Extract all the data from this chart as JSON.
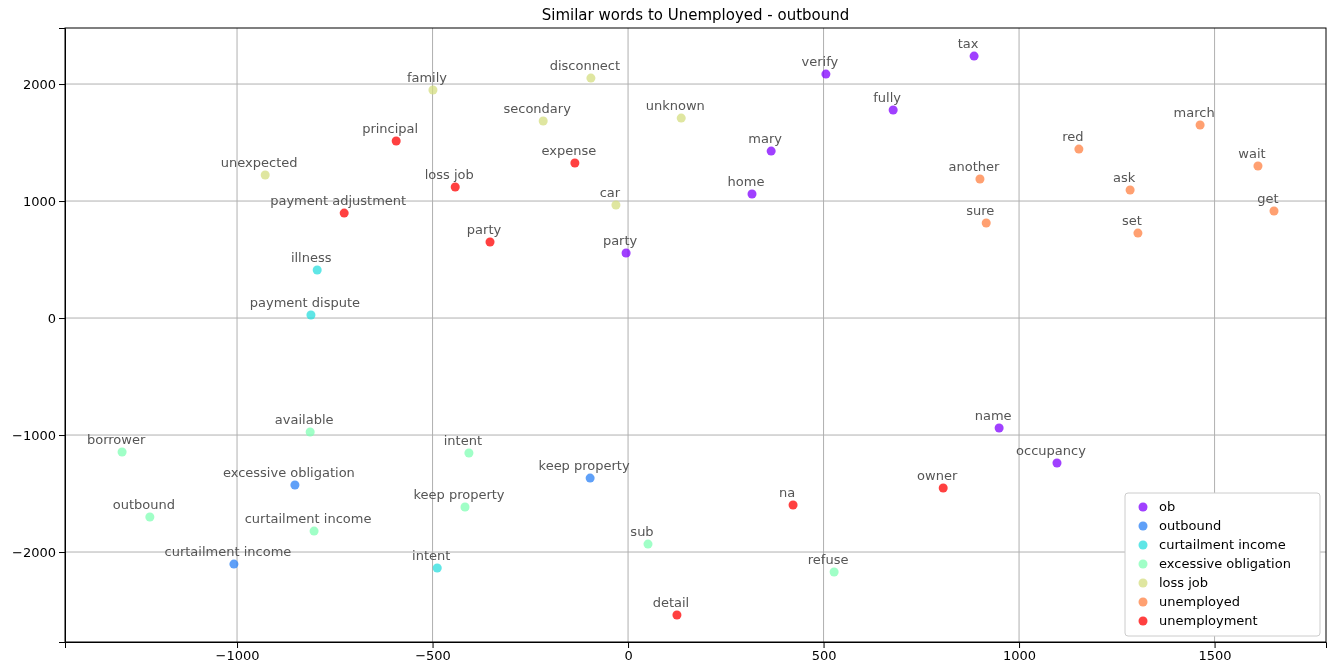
{
  "chart_data": {
    "type": "scatter",
    "title": "Similar words to Unemployed - outbound",
    "xlim": [
      -1440,
      1785
    ],
    "ylim": [
      -2769,
      2479
    ],
    "xticks": [
      {
        "value": -1000,
        "label": "−1000"
      },
      {
        "value": -500,
        "label": "−500"
      },
      0,
      500,
      1000,
      1500
    ],
    "yticks": [
      {
        "value": -2000,
        "label": "−2000"
      },
      {
        "value": -1000,
        "label": "−1000"
      },
      0,
      1000,
      2000
    ],
    "grid": true,
    "legend": "bottom right",
    "marker": "circle",
    "series": [
      {
        "name": "ob",
        "color": "#8000ff",
        "x": [
          885,
          506,
          678,
          366,
          317,
          -5,
          949,
          1097
        ],
        "values": [
          2239,
          2085,
          1778,
          1427,
          1060,
          556,
          -940,
          -1239
        ],
        "value_labels": [
          "tax",
          "verify",
          "fully",
          "mary",
          "home",
          "party",
          "name",
          "occupancy"
        ]
      },
      {
        "name": "outbound",
        "color": "#2a80f6",
        "x": [
          -97,
          -852,
          -1008
        ],
        "values": [
          -1368,
          -1427,
          -2103
        ],
        "value_labels": [
          "keep property",
          "excessive obligation",
          "curtailment income"
        ]
      },
      {
        "name": "curtailment income",
        "color": "#2addde",
        "x": [
          -795,
          -811,
          -488
        ],
        "values": [
          410,
          26,
          -2137
        ],
        "value_labels": [
          "illness",
          "payment dispute",
          "intent"
        ]
      },
      {
        "name": "excessive obligation",
        "color": "#80ffb4",
        "x": [
          -1294,
          -1223,
          -813,
          -407,
          -803,
          -417,
          51,
          527
        ],
        "values": [
          -1145,
          -1701,
          -974,
          -1154,
          -1821,
          -1615,
          -1932,
          -2171
        ],
        "value_labels": [
          "borrower",
          "outbound",
          "available",
          "intent",
          "curtailment income",
          "keep property",
          "sub",
          "refuse"
        ]
      },
      {
        "name": "loss job",
        "color": "#d4dd80",
        "x": [
          -499,
          -95,
          -217,
          136,
          -928,
          -31
        ],
        "values": [
          1949,
          2051,
          1684,
          1709,
          1222,
          966
        ],
        "value_labels": [
          "family",
          "disconnect",
          "secondary",
          "unknown",
          "unexpected",
          "car"
        ]
      },
      {
        "name": "unemployed",
        "color": "#ff8042",
        "x": [
          1463,
          1153,
          900,
          1284,
          1611,
          1652,
          916,
          1304
        ],
        "values": [
          1650,
          1444,
          1188,
          1094,
          1299,
          915,
          812,
          726
        ],
        "value_labels": [
          "march",
          "red",
          "another",
          "ask",
          "wait",
          "get",
          "sure",
          "set"
        ]
      },
      {
        "name": "unemployment",
        "color": "#ff0000",
        "x": [
          -593,
          -136,
          -442,
          -726,
          -353,
          806,
          422,
          125
        ],
        "values": [
          1513,
          1325,
          1120,
          897,
          650,
          -1453,
          -1598,
          -2538
        ],
        "value_labels": [
          "principal",
          "expense",
          "loss job",
          "payment adjustment",
          "party",
          "owner",
          "na",
          "detail"
        ]
      }
    ]
  }
}
